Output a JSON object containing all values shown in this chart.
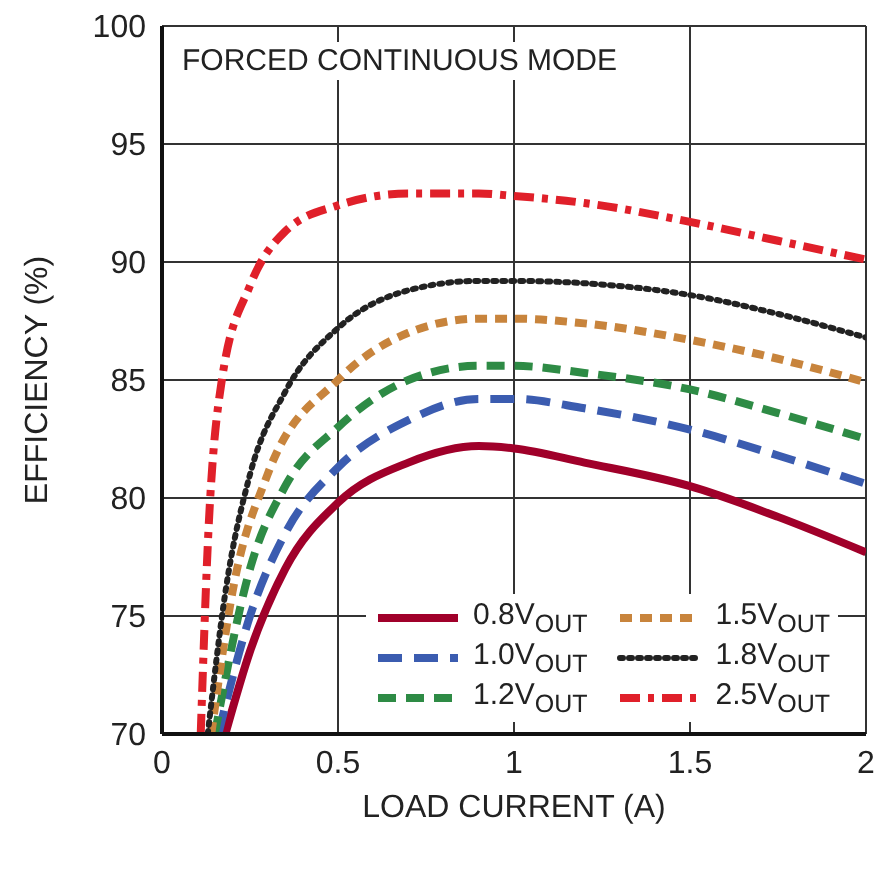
{
  "chart_data": {
    "type": "line",
    "xlabel": "LOAD CURRENT (A)",
    "ylabel": "EFFICIENCY (%)",
    "annotations": [
      "FORCED CONTINUOUS MODE"
    ],
    "xlim": [
      0,
      2
    ],
    "xticks": [
      0,
      0.5,
      1,
      1.5,
      2
    ],
    "ylim": [
      70,
      100
    ],
    "yticks": [
      70,
      75,
      80,
      85,
      90,
      95,
      100
    ],
    "grid": true,
    "legend": "bottom right",
    "marker": "none",
    "series": [
      {
        "name": "0.8V$_{OUT}$",
        "color": "#a0002a",
        "line_style": "solid",
        "x": [
          0.18,
          0.25,
          0.35,
          0.5,
          0.7,
          0.9,
          1,
          1.2,
          1.5,
          1.75,
          2
        ],
        "values": [
          70,
          73.5,
          77,
          79.8,
          81.5,
          82.2,
          82.1,
          81.5,
          80.5,
          79.2,
          77.7
        ]
      },
      {
        "name": "1.0V$_{OUT}$",
        "color": "#3b5cb0",
        "line_style": "dashed",
        "x": [
          0.16,
          0.25,
          0.35,
          0.5,
          0.7,
          0.9,
          1,
          1.2,
          1.5,
          1.75,
          2
        ],
        "values": [
          70,
          75,
          78.5,
          81.3,
          83.3,
          84.2,
          84.2,
          83.8,
          82.9,
          81.8,
          80.6
        ]
      },
      {
        "name": "1.2V$_{OUT}$",
        "color": "#2e8b45",
        "line_style": "dashed",
        "x": [
          0.15,
          0.25,
          0.35,
          0.5,
          0.7,
          0.9,
          1,
          1.2,
          1.5,
          1.75,
          2
        ],
        "values": [
          70,
          77,
          80.5,
          83,
          85,
          85.6,
          85.6,
          85.3,
          84.6,
          83.6,
          82.5
        ]
      },
      {
        "name": "1.5V$_{OUT}$",
        "color": "#c8843c",
        "line_style": "dashed",
        "x": [
          0.14,
          0.2,
          0.3,
          0.5,
          0.7,
          0.9,
          1,
          1.2,
          1.5,
          1.75,
          2
        ],
        "values": [
          70,
          76,
          81,
          85,
          87,
          87.6,
          87.6,
          87.4,
          86.7,
          85.9,
          84.9
        ]
      },
      {
        "name": "1.8V$_{OUT}$",
        "color": "#222222",
        "line_style": "dotted",
        "x": [
          0.13,
          0.18,
          0.25,
          0.35,
          0.5,
          0.7,
          0.9,
          1,
          1.2,
          1.5,
          1.75,
          2
        ],
        "values": [
          70,
          76,
          81,
          84.5,
          87.2,
          88.8,
          89.2,
          89.2,
          89.1,
          88.6,
          87.8,
          86.8
        ]
      },
      {
        "name": "2.5V$_{OUT}$",
        "color": "#e0202a",
        "line_style": "dashed",
        "x": [
          0.11,
          0.13,
          0.17,
          0.25,
          0.35,
          0.5,
          0.7,
          0.9,
          1,
          1.2,
          1.5,
          1.75,
          2
        ],
        "values": [
          70,
          78,
          85,
          89,
          91.3,
          92.4,
          92.9,
          92.9,
          92.8,
          92.5,
          91.7,
          90.9,
          90.1
        ]
      }
    ]
  }
}
